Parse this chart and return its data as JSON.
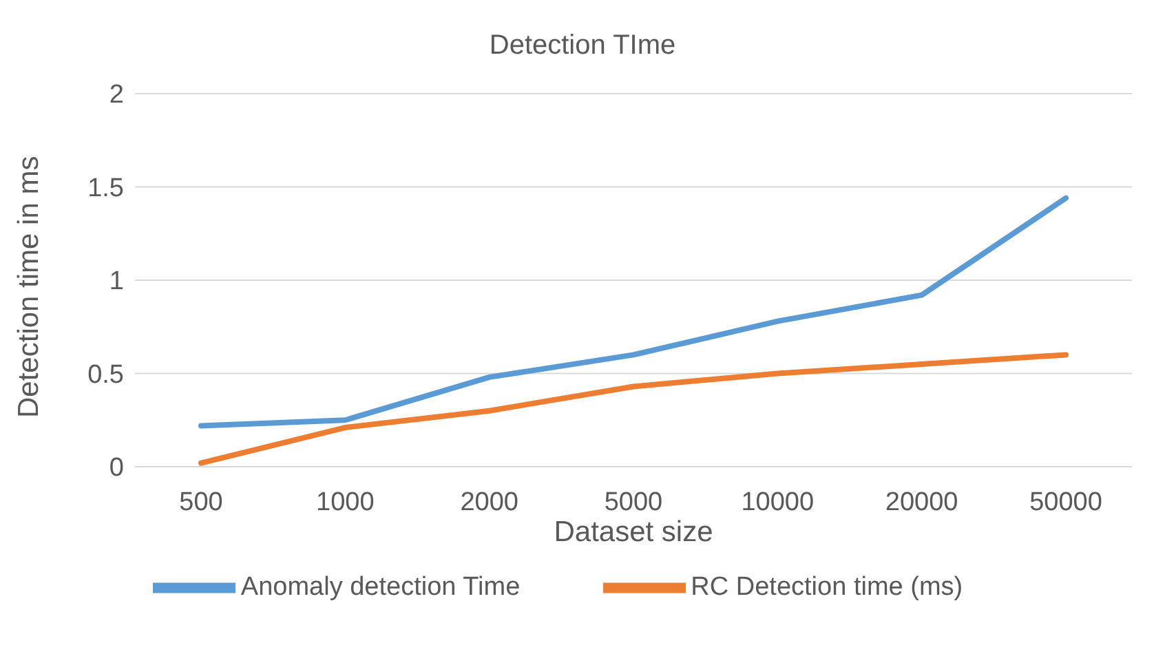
{
  "chart_data": {
    "type": "line",
    "title": "Detection TIme",
    "xlabel": "Dataset size",
    "ylabel": "Detection time in ms",
    "categories": [
      "500",
      "1000",
      "2000",
      "5000",
      "10000",
      "20000",
      "50000"
    ],
    "series": [
      {
        "name": "Anomaly detection Time",
        "color": "#5b9bd5",
        "values": [
          0.22,
          0.25,
          0.48,
          0.6,
          0.78,
          0.92,
          1.44
        ]
      },
      {
        "name": "RC Detection time (ms)",
        "color": "#ed7d31",
        "values": [
          0.02,
          0.21,
          0.3,
          0.43,
          0.5,
          0.55,
          0.6
        ]
      }
    ],
    "ylim": [
      0,
      2
    ],
    "yticks": [
      0,
      0.5,
      1,
      1.5,
      2
    ],
    "grid": "y",
    "legend": "bottom",
    "marker": "none",
    "line_style": "solid"
  }
}
